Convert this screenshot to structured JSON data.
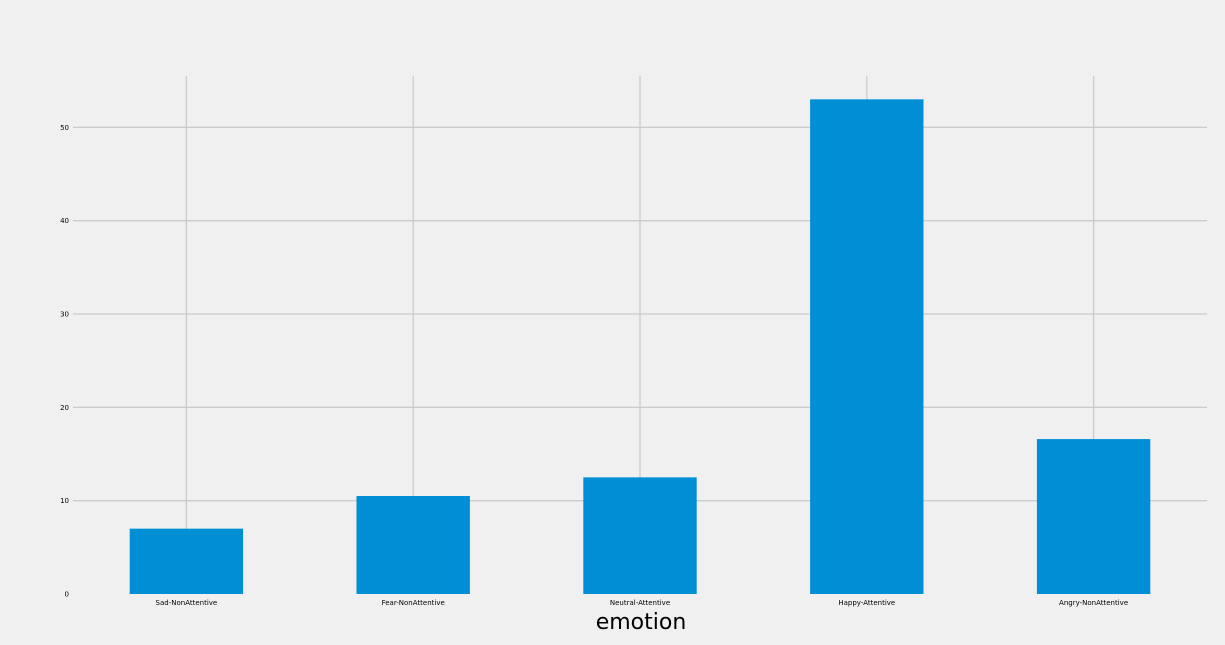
{
  "chart_data": {
    "type": "bar",
    "title": "",
    "xlabel": "emotion",
    "ylabel": "",
    "categories": [
      "Sad-NonAttentive",
      "Fear-NonAttentive",
      "Neutral-Attentive",
      "Happy-Attentive",
      "Angry-NonAttentive"
    ],
    "values": [
      7.0,
      10.5,
      12.5,
      53.0,
      16.6
    ],
    "ylim": [
      0,
      55.5
    ],
    "yticks": [
      0,
      10,
      20,
      30,
      40,
      50
    ],
    "grid": true,
    "legend": "none",
    "colors": {
      "bar": "#008fd5",
      "background": "#f0f0f0",
      "grid": "#cbcbcb",
      "text": "#000000"
    }
  }
}
